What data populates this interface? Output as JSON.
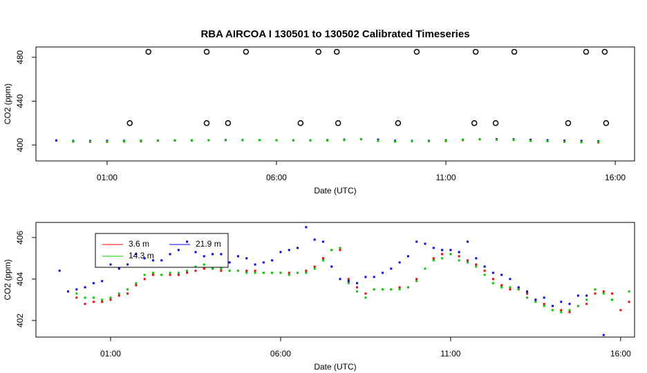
{
  "chart_data": [
    {
      "type": "scatter",
      "title": "RBA   AIRCOA  I   130501  to  130502   Calibrated Timeseries",
      "x_label": "Date (UTC)",
      "y_label": "CO2 (ppm)",
      "x": [
        -0.5,
        0,
        0.5,
        1,
        1.5,
        2,
        2.5,
        3,
        3.5,
        4,
        4.5,
        5,
        5.5,
        6,
        6.5,
        7,
        7.5,
        8,
        8.5,
        9,
        9.5,
        10,
        10.5,
        11,
        11.5,
        12,
        12.5,
        13,
        13.5,
        14,
        14.5,
        15,
        15.5
      ],
      "xlim": [
        -1.1,
        16.57
      ],
      "ylim": [
        385.5,
        489.4
      ],
      "xticks": [
        {
          "value": 1,
          "label": "01:00"
        },
        {
          "value": 6,
          "label": "06:00"
        },
        {
          "value": 11,
          "label": "11:00"
        },
        {
          "value": 16,
          "label": "16:00"
        }
      ],
      "yticks": [
        400,
        440,
        480
      ],
      "series": [
        {
          "color": "#0000ff",
          "values": [
            404.2,
            403.8,
            403.7,
            403.8,
            403.9,
            404.0,
            404.1,
            404.2,
            404.3,
            404.4,
            404.5,
            404.6,
            404.5,
            404.4,
            404.4,
            404.3,
            404.5,
            405.0,
            405.3,
            404.9,
            403.9,
            403.8,
            403.9,
            404.3,
            404.8,
            405.2,
            405.4,
            405.2,
            404.8,
            404.4,
            404.0,
            403.7,
            403.5
          ]
        },
        {
          "color": "#ff0000",
          "values": [
            null,
            403.1,
            402.9,
            402.9,
            403.2,
            403.3,
            404.0,
            404.2,
            404.2,
            404.3,
            404.5,
            404.4,
            404.4,
            404.4,
            404.3,
            404.3,
            404.3,
            404.6,
            405.4,
            404.0,
            403.3,
            403.5,
            403.6,
            403.6,
            404.5,
            405.2,
            405.1,
            404.7,
            404.0,
            403.5,
            403.3,
            402.8,
            402.4
          ]
        },
        {
          "color": "#00cd00",
          "values": [
            null,
            403.3,
            403.1,
            403.1,
            403.5,
            403.8,
            404.2,
            404.3,
            404.3,
            404.4,
            404.7,
            404.5,
            404.4,
            404.3,
            404.3,
            404.3,
            404.2,
            404.5,
            405.4,
            403.8,
            403.1,
            403.5,
            403.5,
            403.9,
            404.9,
            405.2,
            404.8,
            404.6,
            403.8,
            403.5,
            402.9,
            402.5,
            403.0
          ]
        },
        {
          "color": "#000000",
          "marker": "circle",
          "x": [
            1.67,
            2.22,
            3.94,
            3.94,
            4.57,
            5.1,
            6.71,
            7.24,
            7.78,
            7.82,
            9.59,
            10.14,
            11.84,
            11.88,
            12.47,
            13.02,
            14.61,
            15.14,
            15.69,
            15.73
          ],
          "values": [
            420,
            485,
            485,
            420,
            420,
            485,
            420,
            485,
            485,
            420,
            420,
            485,
            420,
            485,
            420,
            485,
            420,
            485,
            485,
            420
          ]
        }
      ]
    },
    {
      "type": "scatter",
      "x_label": "Date (UTC)",
      "y_label": "CO2 (ppm)",
      "legend": "top-left",
      "x": [
        -0.5,
        -0.25,
        0,
        0.25,
        0.5,
        0.75,
        1,
        1.25,
        1.5,
        1.75,
        2,
        2.25,
        2.5,
        2.75,
        3,
        3.25,
        3.5,
        3.75,
        4,
        4.25,
        4.5,
        4.75,
        5,
        5.25,
        5.5,
        5.75,
        6,
        6.25,
        6.5,
        6.75,
        7,
        7.25,
        7.5,
        7.75,
        8,
        8.25,
        8.5,
        8.75,
        9,
        9.25,
        9.5,
        9.75,
        10,
        10.25,
        10.5,
        10.75,
        11,
        11.25,
        11.5,
        11.75,
        12,
        12.25,
        12.5,
        12.75,
        13,
        13.25,
        13.5,
        13.75,
        14,
        14.25,
        14.5,
        14.75,
        15,
        15.25,
        15.5,
        15.75,
        16,
        16.25
      ],
      "xlim": [
        -1.195,
        16.41
      ],
      "ylim": [
        401.2,
        406.73
      ],
      "xticks": [
        {
          "value": 1,
          "label": "01:00"
        },
        {
          "value": 6,
          "label": "06:00"
        },
        {
          "value": 11,
          "label": "11:00"
        },
        {
          "value": 16,
          "label": "16:00"
        }
      ],
      "yticks": [
        402,
        404,
        406
      ],
      "series": [
        {
          "name": "3.6 m",
          "color": "#ff0000",
          "values": [
            null,
            null,
            403.1,
            402.8,
            402.9,
            402.9,
            403.0,
            403.2,
            403.3,
            403.7,
            404.0,
            404.2,
            404.2,
            404.2,
            404.2,
            404.3,
            404.4,
            404.5,
            404.5,
            404.4,
            404.4,
            404.4,
            404.4,
            404.4,
            404.3,
            404.3,
            404.3,
            404.3,
            404.3,
            404.4,
            404.6,
            405.0,
            405.4,
            405.4,
            404.0,
            403.6,
            403.3,
            403.5,
            403.5,
            403.5,
            403.6,
            403.6,
            404.0,
            404.5,
            405.0,
            405.2,
            405.2,
            405.1,
            404.9,
            404.7,
            404.4,
            404.0,
            403.7,
            403.5,
            403.5,
            403.3,
            403.0,
            402.8,
            402.7,
            402.5,
            402.4,
            402.7,
            402.8,
            403.3,
            403.4,
            403.3,
            402.5,
            402.9
          ]
        },
        {
          "name": "21.9 m",
          "color": "#0000ff",
          "values": [
            404.4,
            403.4,
            403.5,
            403.6,
            403.8,
            403.9,
            404.7,
            404.5,
            404.7,
            405.2,
            405.0,
            404.9,
            404.9,
            405.2,
            405.4,
            405.8,
            405.3,
            405.1,
            405.2,
            405.2,
            404.8,
            405.1,
            405.0,
            404.7,
            404.8,
            404.9,
            405.3,
            405.4,
            405.5,
            406.5,
            405.9,
            405.8,
            404.6,
            404.0,
            403.9,
            403.8,
            404.1,
            404.1,
            404.3,
            404.5,
            404.8,
            405.1,
            405.8,
            405.7,
            405.5,
            405.4,
            405.4,
            405.3,
            405.8,
            405.0,
            404.6,
            404.3,
            404.2,
            404.0,
            403.6,
            403.4,
            403.0,
            403.1,
            402.7,
            402.9,
            402.8,
            403.2,
            403.2,
            403.5,
            401.3,
            403.0,
            null,
            null
          ]
        },
        {
          "name": "14.3 m",
          "color": "#00cd00",
          "values": [
            null,
            null,
            403.3,
            403.1,
            403.1,
            403.0,
            403.1,
            403.3,
            403.5,
            403.8,
            404.2,
            404.3,
            404.2,
            404.3,
            404.3,
            404.4,
            404.6,
            404.7,
            404.5,
            404.5,
            404.4,
            404.4,
            404.3,
            404.3,
            404.3,
            404.3,
            404.3,
            404.2,
            404.3,
            404.3,
            404.5,
            404.9,
            405.4,
            405.5,
            403.8,
            403.4,
            403.1,
            403.5,
            403.5,
            403.5,
            403.5,
            403.6,
            403.9,
            404.5,
            404.9,
            405.0,
            405.2,
            404.9,
            404.8,
            404.6,
            404.2,
            403.8,
            403.6,
            403.6,
            403.5,
            403.1,
            402.9,
            402.7,
            402.5,
            402.4,
            402.5,
            402.7,
            403.0,
            403.5,
            403.3,
            403.0,
            null,
            403.4
          ]
        }
      ]
    }
  ]
}
